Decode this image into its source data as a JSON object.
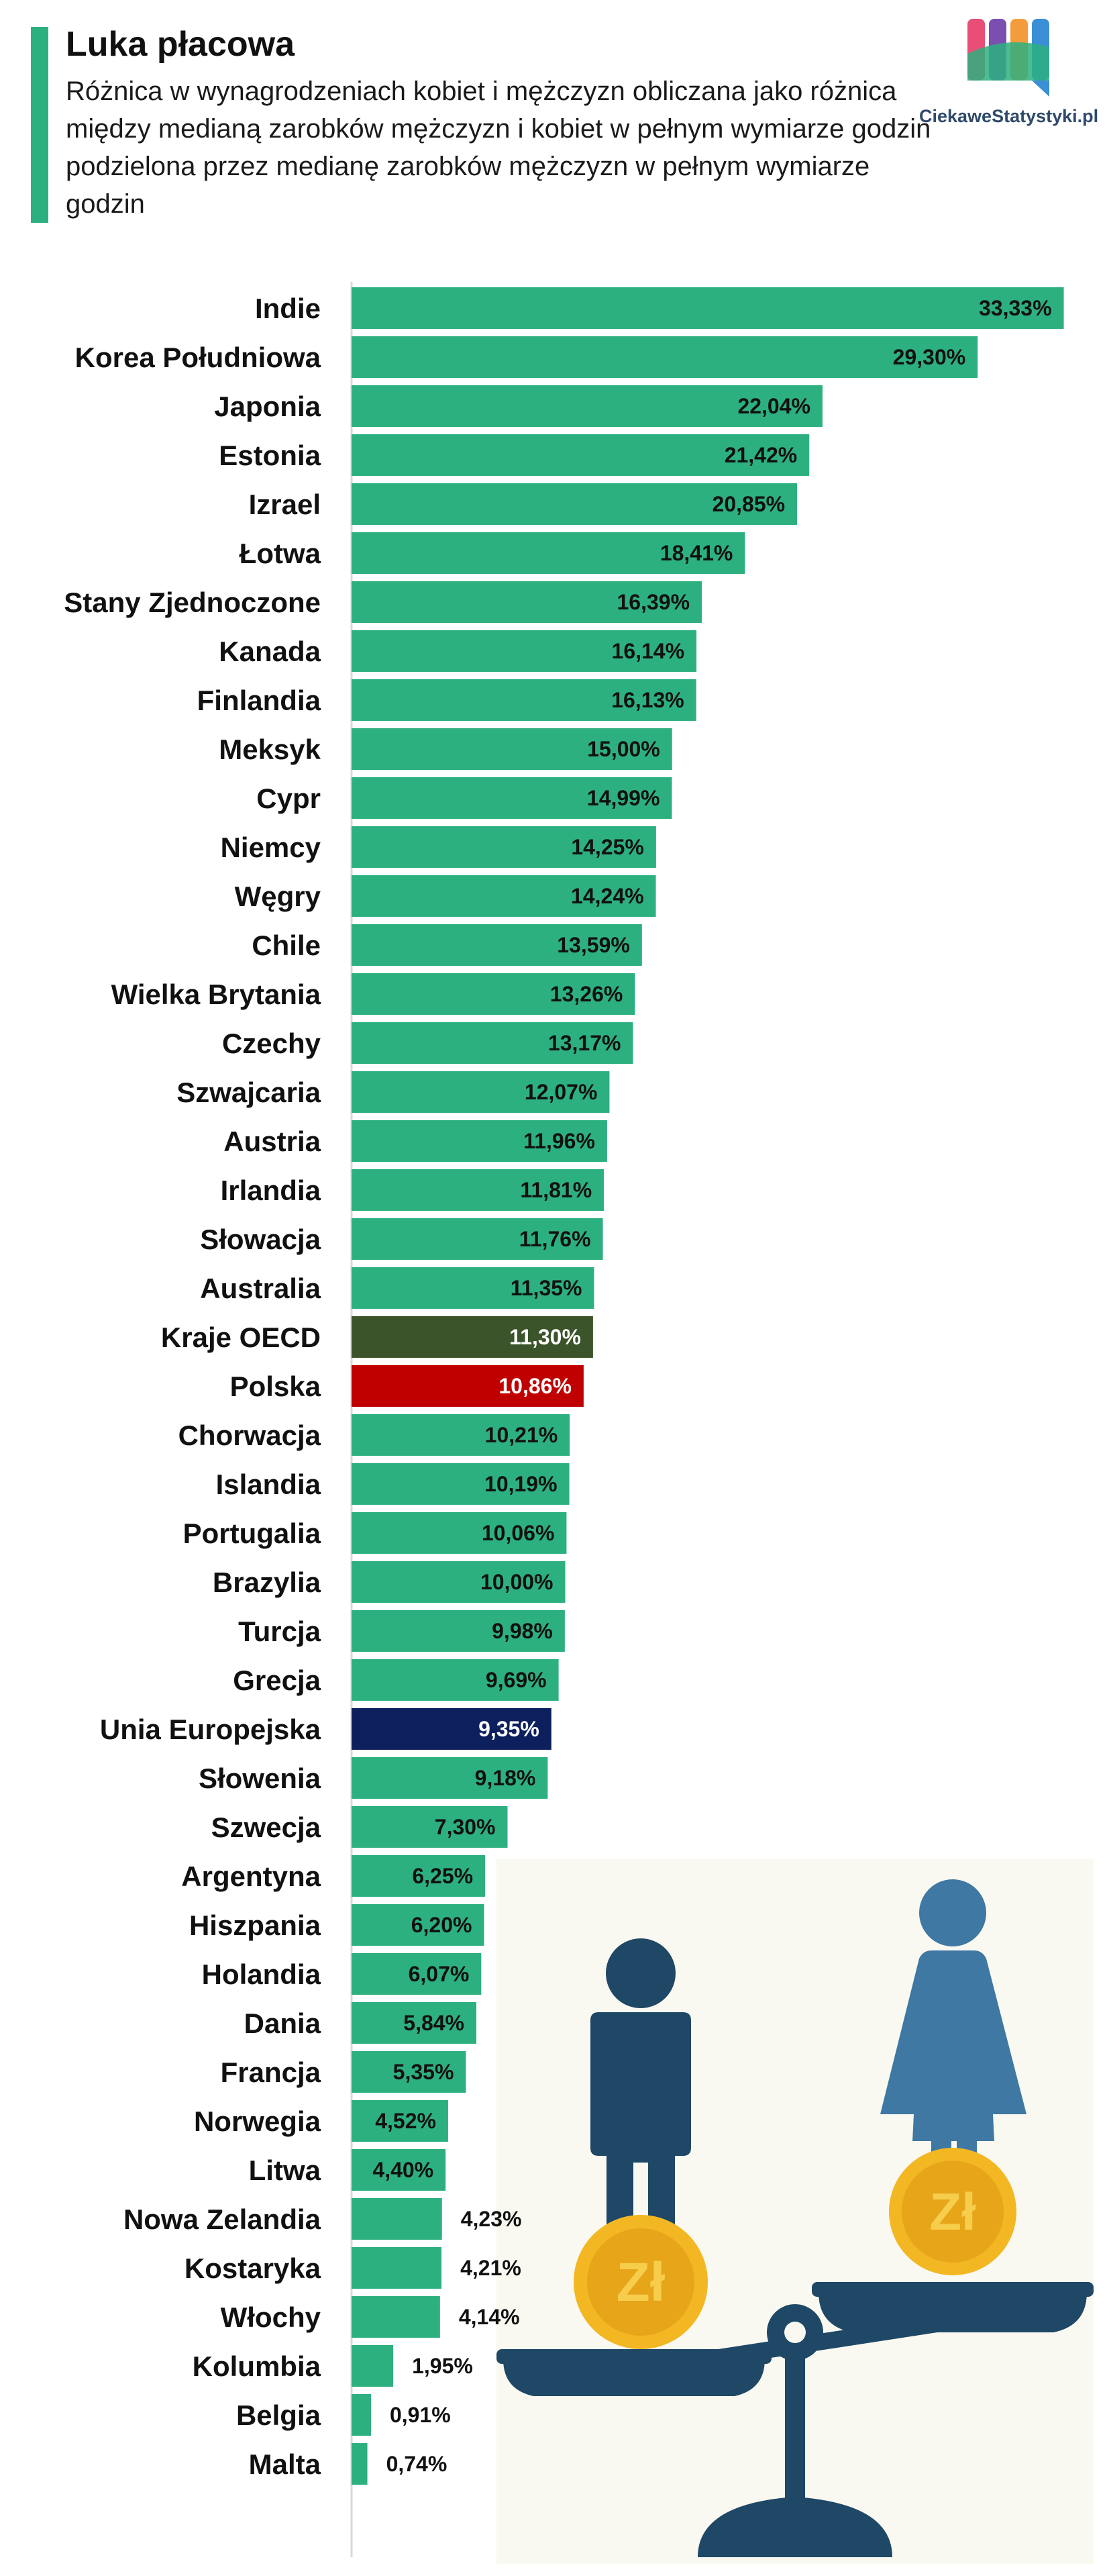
{
  "header": {
    "title": "Luka płacowa",
    "subtitle": "Różnica w wynagrodzeniach kobiet i mężczyzn obliczana jako różnica między medianą zarobków mężczyzn i kobiet w pełnym wymiarze godzin podzielona przez medianę zarobków mężczyzn w pełnym wymiarze godzin"
  },
  "logo": {
    "text": "CiekaweStatystyki.pl"
  },
  "colors": {
    "default_bar": "#2db07f",
    "oecd_bar": "#3b5429",
    "poland_bar": "#c00000",
    "eu_bar": "#0d1f5c",
    "accent": "#2db07f"
  },
  "chart_data": {
    "type": "bar",
    "orientation": "horizontal",
    "categories": [
      "Indie",
      "Korea Południowa",
      "Japonia",
      "Estonia",
      "Izrael",
      "Łotwa",
      "Stany Zjednoczone",
      "Kanada",
      "Finlandia",
      "Meksyk",
      "Cypr",
      "Niemcy",
      "Węgry",
      "Chile",
      "Wielka Brytania",
      "Czechy",
      "Szwajcaria",
      "Austria",
      "Irlandia",
      "Słowacja",
      "Australia",
      "Kraje OECD",
      "Polska",
      "Chorwacja",
      "Islandia",
      "Portugalia",
      "Brazylia",
      "Turcja",
      "Grecja",
      "Unia Europejska",
      "Słowenia",
      "Szwecja",
      "Argentyna",
      "Hiszpania",
      "Holandia",
      "Dania",
      "Francja",
      "Norwegia",
      "Litwa",
      "Nowa Zelandia",
      "Kostaryka",
      "Włochy",
      "Kolumbia",
      "Belgia",
      "Malta"
    ],
    "values": [
      33.33,
      29.3,
      22.04,
      21.42,
      20.85,
      18.41,
      16.39,
      16.14,
      16.13,
      15.0,
      14.99,
      14.25,
      14.24,
      13.59,
      13.26,
      13.17,
      12.07,
      11.96,
      11.81,
      11.76,
      11.35,
      11.3,
      10.86,
      10.21,
      10.19,
      10.06,
      10.0,
      9.98,
      9.69,
      9.35,
      9.18,
      7.3,
      6.25,
      6.2,
      6.07,
      5.84,
      5.35,
      4.52,
      4.4,
      4.23,
      4.21,
      4.14,
      1.95,
      0.91,
      0.74
    ],
    "labels": [
      "33,33%",
      "29,30%",
      "22,04%",
      "21,42%",
      "20,85%",
      "18,41%",
      "16,39%",
      "16,14%",
      "16,13%",
      "15,00%",
      "14,99%",
      "14,25%",
      "14,24%",
      "13,59%",
      "13,26%",
      "13,17%",
      "12,07%",
      "11,96%",
      "11,81%",
      "11,76%",
      "11,35%",
      "11,30%",
      "10,86%",
      "10,21%",
      "10,19%",
      "10,06%",
      "10,00%",
      "9,98%",
      "9,69%",
      "9,35%",
      "9,18%",
      "7,30%",
      "6,25%",
      "6,20%",
      "6,07%",
      "5,84%",
      "5,35%",
      "4,52%",
      "4,40%",
      "4,23%",
      "4,21%",
      "4,14%",
      "1,95%",
      "0,91%",
      "0,74%"
    ],
    "highlights": {
      "Kraje OECD": "oecd_bar",
      "Polska": "poland_bar",
      "Unia Europejska": "eu_bar"
    },
    "unit": "%",
    "grid": false,
    "legend": "none"
  }
}
